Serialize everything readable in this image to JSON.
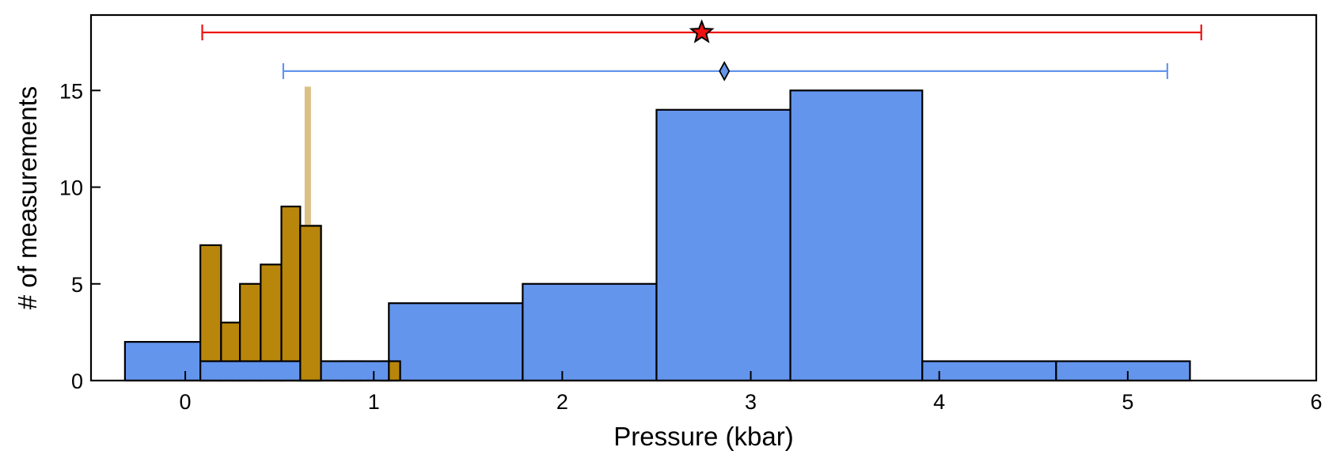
{
  "chart_data": {
    "type": "bar",
    "xlabel": "Pressure (kbar)",
    "ylabel": "# of measurements",
    "xlim": [
      -0.5,
      6
    ],
    "ylim": [
      0,
      18.9
    ],
    "xticks": [
      0,
      1,
      2,
      3,
      4,
      5,
      6
    ],
    "yticks": [
      0,
      5,
      10,
      15
    ],
    "grid": false,
    "colors": {
      "blue_fill": "#6495ED",
      "gold_fill": "#B8860B",
      "gold_line": "#DBC085",
      "red": "#EE1111",
      "bar_edge": "#000000"
    },
    "series": [
      {
        "color": "#6495ED",
        "bins": [
          {
            "x0": -0.32,
            "x1": 0.08,
            "count": 2
          },
          {
            "x0": 0.08,
            "x1": 1.08,
            "count": 1
          },
          {
            "x0": 1.08,
            "x1": 1.79,
            "count": 4
          },
          {
            "x0": 1.79,
            "x1": 2.5,
            "count": 5
          },
          {
            "x0": 2.5,
            "x1": 3.21,
            "count": 14
          },
          {
            "x0": 3.21,
            "x1": 3.91,
            "count": 15
          },
          {
            "x0": 3.91,
            "x1": 4.62,
            "count": 1
          },
          {
            "x0": 4.62,
            "x1": 5.33,
            "count": 1
          }
        ]
      },
      {
        "color": "#B8860B",
        "bins": [
          {
            "x0": 0.08,
            "x1": 0.19,
            "count": 7
          },
          {
            "x0": 0.19,
            "x1": 0.29,
            "count": 3
          },
          {
            "x0": 0.29,
            "x1": 0.4,
            "count": 5
          },
          {
            "x0": 0.4,
            "x1": 0.51,
            "count": 6
          },
          {
            "x0": 0.51,
            "x1": 0.61,
            "count": 9
          },
          {
            "x0": 0.61,
            "x1": 0.72,
            "count": 8
          },
          {
            "x0": 0.72,
            "x1": 0.82,
            "count": 0
          },
          {
            "x0": 0.82,
            "x1": 0.93,
            "count": 1
          },
          {
            "x0": 0.93,
            "x1": 1.04,
            "count": 0
          },
          {
            "x0": 1.04,
            "x1": 1.14,
            "count": 1
          }
        ]
      }
    ],
    "reference_line": {
      "x": 0.65,
      "y_max": 15.2,
      "color": "#DBC085"
    },
    "error_bars": [
      {
        "center": 2.74,
        "low": 0.09,
        "high": 5.39,
        "y": 18,
        "color": "#EE1111",
        "marker": "star"
      },
      {
        "center": 2.86,
        "low": 0.52,
        "high": 5.21,
        "y": 16,
        "color": "#6495ED",
        "marker": "diamond"
      }
    ]
  }
}
